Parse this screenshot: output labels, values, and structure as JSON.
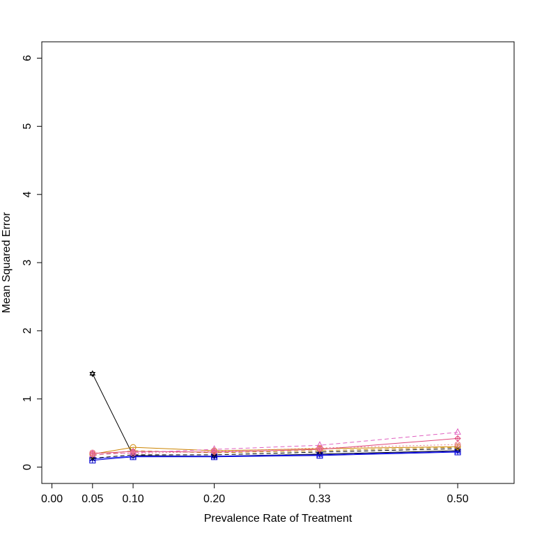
{
  "chart_data": {
    "type": "line",
    "title": "",
    "xlabel": "Prevalence Rate of Treatment",
    "ylabel": "Mean Squared Error",
    "x_ticks": [
      "0.00",
      "0.05",
      "0.10",
      "0.20",
      "0.33",
      "0.50"
    ],
    "y_ticks": [
      "0",
      "1",
      "2",
      "3",
      "4",
      "5",
      "6"
    ],
    "xlim": [
      -0.0125,
      0.5695
    ],
    "ylim": [
      -0.24,
      6.24
    ],
    "x": [
      0.05,
      0.1,
      0.2,
      0.33,
      0.5
    ],
    "grid": false,
    "legend": "none",
    "series": [
      {
        "color": "#000000",
        "dash": "solid",
        "marker": "star",
        "values": [
          1.37,
          0.17,
          0.16,
          0.19,
          0.24
        ]
      },
      {
        "color": "#0000cc",
        "dash": "solid",
        "marker": "square-cross",
        "values": [
          0.1,
          0.15,
          0.15,
          0.17,
          0.22
        ]
      },
      {
        "color": "#1a1aff",
        "dash": "solid",
        "marker": "x",
        "values": [
          0.12,
          0.16,
          0.16,
          0.18,
          0.23
        ]
      },
      {
        "color": "#000000",
        "dash": "dashed",
        "marker": "asterisk",
        "values": [
          0.13,
          0.18,
          0.18,
          0.22,
          0.27
        ]
      },
      {
        "color": "#cc8400",
        "dash": "solid",
        "marker": "circle",
        "values": [
          0.19,
          0.29,
          0.24,
          0.27,
          0.3
        ]
      },
      {
        "color": "#b8860b",
        "dash": "dashed",
        "marker": "plus",
        "values": [
          0.17,
          0.24,
          0.21,
          0.24,
          0.29
        ]
      },
      {
        "color": "#e0457b",
        "dash": "solid",
        "marker": "diamond-plus",
        "values": [
          0.2,
          0.23,
          0.22,
          0.26,
          0.42
        ]
      },
      {
        "color": "#e060c0",
        "dash": "dashed",
        "marker": "triangle",
        "values": [
          0.18,
          0.21,
          0.26,
          0.32,
          0.51
        ]
      },
      {
        "color": "#e8758a",
        "dash": "dotted",
        "marker": "circle-cross",
        "values": [
          0.21,
          0.2,
          0.23,
          0.28,
          0.33
        ]
      }
    ]
  }
}
